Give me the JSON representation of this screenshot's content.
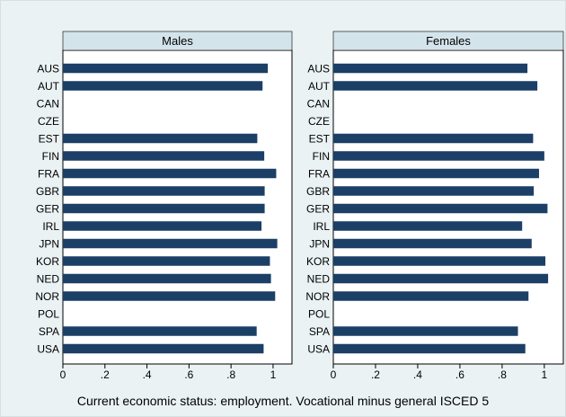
{
  "chart_data": {
    "type": "bar",
    "orientation": "horizontal",
    "caption": "Current economic status: employment. Vocational minus general ISCED 5",
    "categories": [
      "AUS",
      "AUT",
      "CAN",
      "CZE",
      "EST",
      "FIN",
      "FRA",
      "GBR",
      "GER",
      "IRL",
      "JPN",
      "KOR",
      "NED",
      "NOR",
      "POL",
      "SPA",
      "USA"
    ],
    "xlim": [
      0,
      1.09
    ],
    "xticks": [
      "0",
      ".2",
      ".4",
      ".6",
      ".8",
      "1"
    ],
    "xtick_values": [
      0,
      0.2,
      0.4,
      0.6,
      0.8,
      1.0
    ],
    "bar_color": "#1b3f66",
    "panel_header_color": "#d4e4eb",
    "panels": [
      {
        "title": "Males",
        "values": [
          0.975,
          0.95,
          null,
          null,
          0.925,
          0.958,
          1.015,
          0.96,
          0.96,
          0.945,
          1.02,
          0.985,
          0.99,
          1.01,
          null,
          0.922,
          0.955
        ]
      },
      {
        "title": "Females",
        "values": [
          0.92,
          0.967,
          null,
          null,
          0.947,
          1.0,
          0.975,
          0.95,
          1.015,
          0.895,
          0.94,
          1.005,
          1.018,
          0.925,
          null,
          0.875,
          0.91
        ]
      }
    ]
  }
}
